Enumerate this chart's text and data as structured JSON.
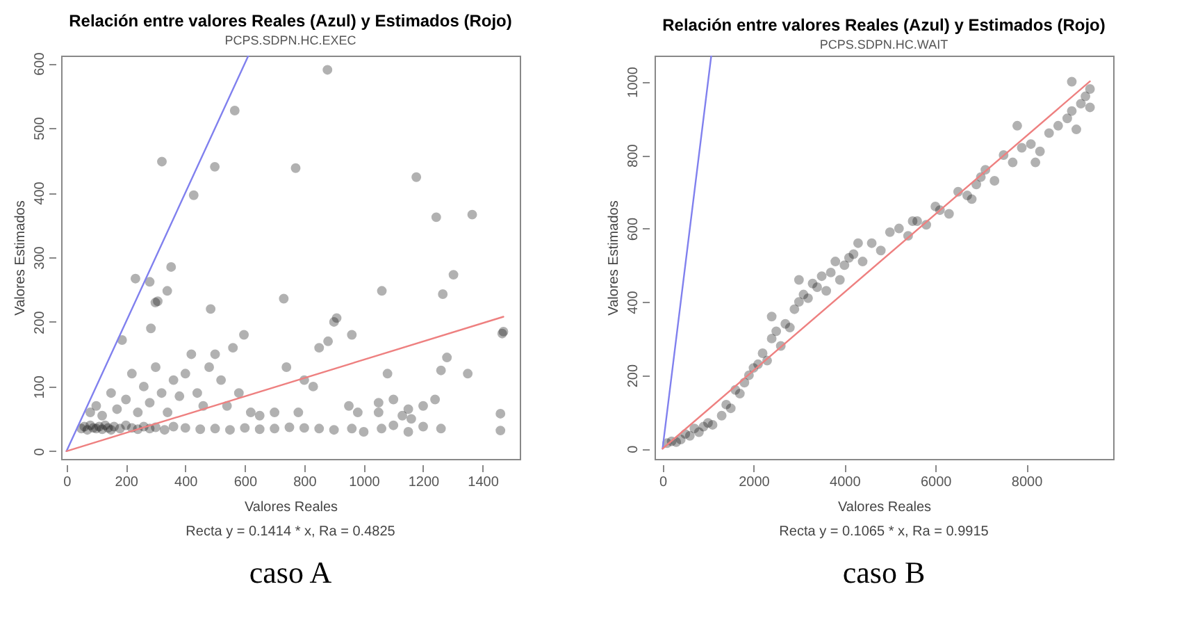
{
  "chart_data": [
    {
      "type": "scatter",
      "title": "Relación entre valores Reales (Azul) y Estimados (Rojo)",
      "subtitle": "PCPS.SDPN.HC.EXEC",
      "xlabel": "Valores Reales",
      "ylabel": "Valores Estimados",
      "annotations": [
        "Recta y = 0.1414 * x, Ra = 0.4825",
        "caso A"
      ],
      "xlim": [
        -18,
        1525
      ],
      "ylim": [
        -12,
        612
      ],
      "xticks": [
        0,
        200,
        400,
        600,
        800,
        1000,
        1200,
        1400
      ],
      "yticks": [
        0,
        100,
        200,
        300,
        400,
        500,
        600
      ],
      "grid": false,
      "series": [
        {
          "color": "#000000",
          "marker": "circle",
          "x": [
            50,
            60,
            70,
            80,
            90,
            100,
            110,
            120,
            130,
            140,
            150,
            160,
            180,
            200,
            220,
            240,
            260,
            280,
            300,
            330,
            360,
            400,
            450,
            500,
            550,
            600,
            650,
            700,
            750,
            800,
            850,
            900,
            960,
            1000,
            1060,
            1100,
            1150,
            1200,
            1260,
            1460,
            1460,
            80,
            100,
            120,
            150,
            170,
            200,
            220,
            240,
            260,
            280,
            300,
            320,
            340,
            360,
            380,
            400,
            420,
            440,
            460,
            480,
            500,
            520,
            540,
            560,
            580,
            620,
            650,
            700,
            740,
            780,
            800,
            830,
            850,
            880,
            900,
            950,
            980,
            1050,
            1080,
            1100,
            1130,
            1160,
            1200,
            1240,
            1260,
            1280,
            1350,
            1470,
            1050,
            1150,
            878,
            566,
            321,
            499,
            428,
            771,
            1177,
            1244,
            1365,
            1302,
            232,
            280,
            352,
            339,
            731,
            1061,
            1266,
            299,
            485,
            307,
            909,
            960,
            597,
            1466,
            187,
            284
          ],
          "values": [
            35,
            38,
            33,
            40,
            36,
            35,
            38,
            34,
            40,
            36,
            33,
            38,
            35,
            40,
            36,
            34,
            38,
            35,
            37,
            33,
            38,
            36,
            34,
            35,
            33,
            36,
            34,
            35,
            37,
            36,
            35,
            33,
            35,
            30,
            35,
            40,
            30,
            38,
            35,
            32,
            58,
            60,
            70,
            55,
            90,
            65,
            80,
            120,
            60,
            100,
            75,
            130,
            90,
            60,
            110,
            85,
            120,
            150,
            90,
            70,
            130,
            150,
            110,
            70,
            160,
            90,
            60,
            55,
            60,
            130,
            60,
            110,
            100,
            160,
            170,
            200,
            70,
            60,
            60,
            120,
            80,
            55,
            50,
            70,
            80,
            125,
            145,
            120,
            185,
            75,
            65,
            590,
            527,
            448,
            440,
            396,
            438,
            424,
            362,
            366,
            273,
            267,
            262,
            285,
            248,
            236,
            248,
            243,
            230,
            220,
            232,
            206,
            180,
            180,
            182,
            172,
            190
          ]
        },
        {
          "type": "line",
          "color": "#8080ee",
          "x": [
            0,
            612
          ],
          "values": [
            0,
            612
          ]
        },
        {
          "type": "line",
          "color": "#ee8080",
          "x": [
            0,
            1470
          ],
          "values": [
            0,
            208
          ]
        }
      ]
    },
    {
      "type": "scatter",
      "title": "Relación entre valores Reales (Azul) y Estimados (Rojo)",
      "subtitle": "PCPS.SDPN.HC.WAIT",
      "xlabel": "Valores Reales",
      "ylabel": "Valores Estimados",
      "annotations": [
        "Recta y = 0.1065 * x, Ra = 0.9915",
        "caso B"
      ],
      "xlim": [
        -176,
        9910
      ],
      "ylim": [
        -28,
        1071
      ],
      "xticks": [
        0,
        2000,
        4000,
        6000,
        8000
      ],
      "yticks": [
        0,
        200,
        400,
        600,
        800,
        1000
      ],
      "grid": false,
      "series": [
        {
          "color": "#000000",
          "marker": "circle",
          "x": [
            100,
            200,
            300,
            400,
            500,
            600,
            700,
            800,
            900,
            1000,
            1100,
            1300,
            1400,
            1500,
            1600,
            1700,
            1800,
            1900,
            2000,
            2100,
            2200,
            2300,
            2400,
            2500,
            2600,
            2700,
            2800,
            2900,
            3000,
            3100,
            3200,
            3300,
            3400,
            3500,
            3600,
            3700,
            3800,
            3900,
            4000,
            4100,
            4200,
            4400,
            4600,
            4800,
            5000,
            5200,
            5400,
            5600,
            5800,
            6000,
            6100,
            6300,
            6500,
            6700,
            6900,
            7000,
            7100,
            7300,
            7500,
            7700,
            7900,
            8100,
            8300,
            8500,
            8700,
            8900,
            9000,
            9100,
            9200,
            9300,
            9400,
            9400,
            2400,
            3000,
            4300,
            5500,
            6800,
            8200,
            9000,
            7800
          ],
          "values": [
            15,
            20,
            18,
            25,
            40,
            35,
            55,
            45,
            60,
            70,
            65,
            90,
            120,
            110,
            160,
            150,
            180,
            200,
            220,
            230,
            260,
            240,
            300,
            320,
            280,
            340,
            330,
            380,
            400,
            420,
            410,
            450,
            440,
            470,
            430,
            480,
            510,
            460,
            500,
            520,
            530,
            510,
            560,
            540,
            590,
            600,
            580,
            620,
            610,
            660,
            650,
            640,
            700,
            690,
            720,
            740,
            760,
            730,
            800,
            780,
            820,
            830,
            810,
            860,
            880,
            900,
            920,
            870,
            940,
            960,
            930,
            980,
            360,
            460,
            560,
            620,
            680,
            780,
            1000,
            880
          ]
        },
        {
          "type": "line",
          "color": "#8080ee",
          "x": [
            0,
            1071
          ],
          "values": [
            0,
            1071
          ]
        },
        {
          "type": "line",
          "color": "#ee8080",
          "x": [
            0,
            9400
          ],
          "values": [
            0,
            1001
          ]
        }
      ]
    }
  ]
}
